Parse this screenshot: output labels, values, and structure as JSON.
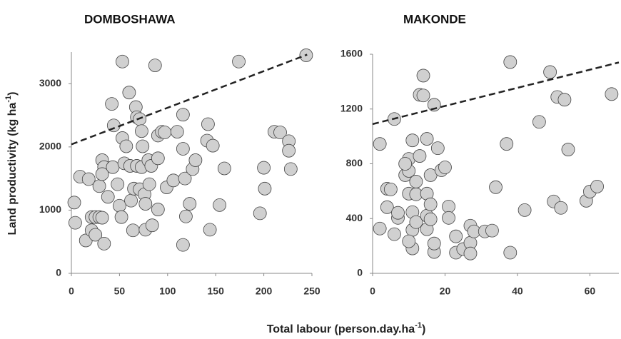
{
  "axis_labels": {
    "y": {
      "text": "Land productivity (kg ha",
      "sup": "-1",
      "end": ")"
    },
    "x": {
      "text": "Total labour (person.day.ha",
      "sup": "-1",
      "end": ")"
    }
  },
  "chart_data": [
    {
      "type": "scatter",
      "title": "DOMBOSHAWA",
      "xlim": [
        0,
        250
      ],
      "xticks": [
        0,
        50,
        100,
        150,
        200,
        250
      ],
      "ylim": [
        0,
        3500
      ],
      "yticks": [
        0,
        1000,
        2000,
        3000
      ],
      "color": "#d0d0d0",
      "trendline": {
        "x": [
          0,
          245
        ],
        "y": [
          2040,
          3460
        ]
      },
      "x": [
        3,
        4,
        9,
        15,
        18,
        21,
        21,
        25,
        25,
        29,
        32,
        32,
        34,
        34,
        29,
        32,
        38,
        42,
        44,
        43,
        48,
        50,
        52,
        53,
        53,
        57,
        55,
        60,
        61,
        62,
        64,
        65,
        67,
        68,
        68,
        71,
        71,
        73,
        73,
        74,
        76,
        77,
        77,
        80,
        81,
        83,
        84,
        87,
        90,
        90,
        90,
        94,
        97,
        99,
        106,
        110,
        116,
        116,
        118,
        119,
        116,
        123,
        126,
        129,
        141,
        142,
        147,
        144,
        154,
        159,
        174,
        196,
        200,
        201,
        211,
        217,
        226,
        226,
        228,
        244
      ],
      "values": [
        1120,
        800,
        1530,
        520,
        1490,
        680,
        890,
        610,
        890,
        890,
        880,
        1790,
        1680,
        470,
        1380,
        1570,
        1210,
        2680,
        2340,
        1680,
        1410,
        1070,
        890,
        3350,
        2140,
        2010,
        1740,
        2860,
        1700,
        1150,
        680,
        1340,
        2630,
        2470,
        1700,
        2440,
        1330,
        1680,
        2250,
        2010,
        1250,
        1100,
        690,
        1790,
        1410,
        1700,
        760,
        3290,
        2180,
        1820,
        1010,
        2240,
        2230,
        1360,
        1470,
        2240,
        1970,
        2510,
        1500,
        900,
        450,
        1100,
        1650,
        1790,
        2100,
        2360,
        2020,
        690,
        1080,
        1660,
        3350,
        950,
        1670,
        1340,
        2240,
        2230,
        2090,
        1940,
        1650,
        3450
      ]
    },
    {
      "type": "scatter",
      "title": "MAKONDE",
      "xlim": [
        0,
        68
      ],
      "xticks": [
        0,
        20,
        40,
        60
      ],
      "ylim": [
        0,
        1600
      ],
      "yticks": [
        0,
        400,
        800,
        1200,
        1600
      ],
      "color": "#d0d0d0",
      "trendline": {
        "x": [
          0,
          68
        ],
        "y": [
          1090,
          1540
        ]
      },
      "x": [
        6,
        2,
        2,
        4,
        4,
        5,
        7,
        7,
        6,
        9,
        10,
        10,
        9,
        10,
        11,
        11,
        11,
        10,
        11,
        12,
        12,
        12,
        13,
        13,
        14,
        14,
        15,
        15,
        15,
        15,
        16,
        16,
        16,
        17,
        17,
        18,
        17,
        19,
        20,
        21,
        21,
        23,
        23,
        25,
        27,
        27,
        27,
        28,
        31,
        33,
        34,
        37,
        38,
        38,
        42,
        46,
        49,
        50,
        51,
        52,
        53,
        54,
        59,
        60,
        62,
        66
      ],
      "values": [
        1127,
        945,
        327,
        483,
        618,
        613,
        405,
        442,
        286,
        717,
        748,
        836,
        800,
        582,
        971,
        317,
        182,
        234,
        447,
        670,
        374,
        577,
        857,
        1304,
        1299,
        1444,
        982,
        322,
        582,
        421,
        717,
        504,
        395,
        156,
        1231,
        914,
        218,
        753,
        774,
        488,
        405,
        151,
        270,
        177,
        223,
        145,
        348,
        306,
        306,
        312,
        629,
        945,
        1543,
        151,
        462,
        1106,
        1470,
        525,
        1288,
        478,
        1268,
        904,
        530,
        597,
        634,
        1309
      ]
    }
  ]
}
